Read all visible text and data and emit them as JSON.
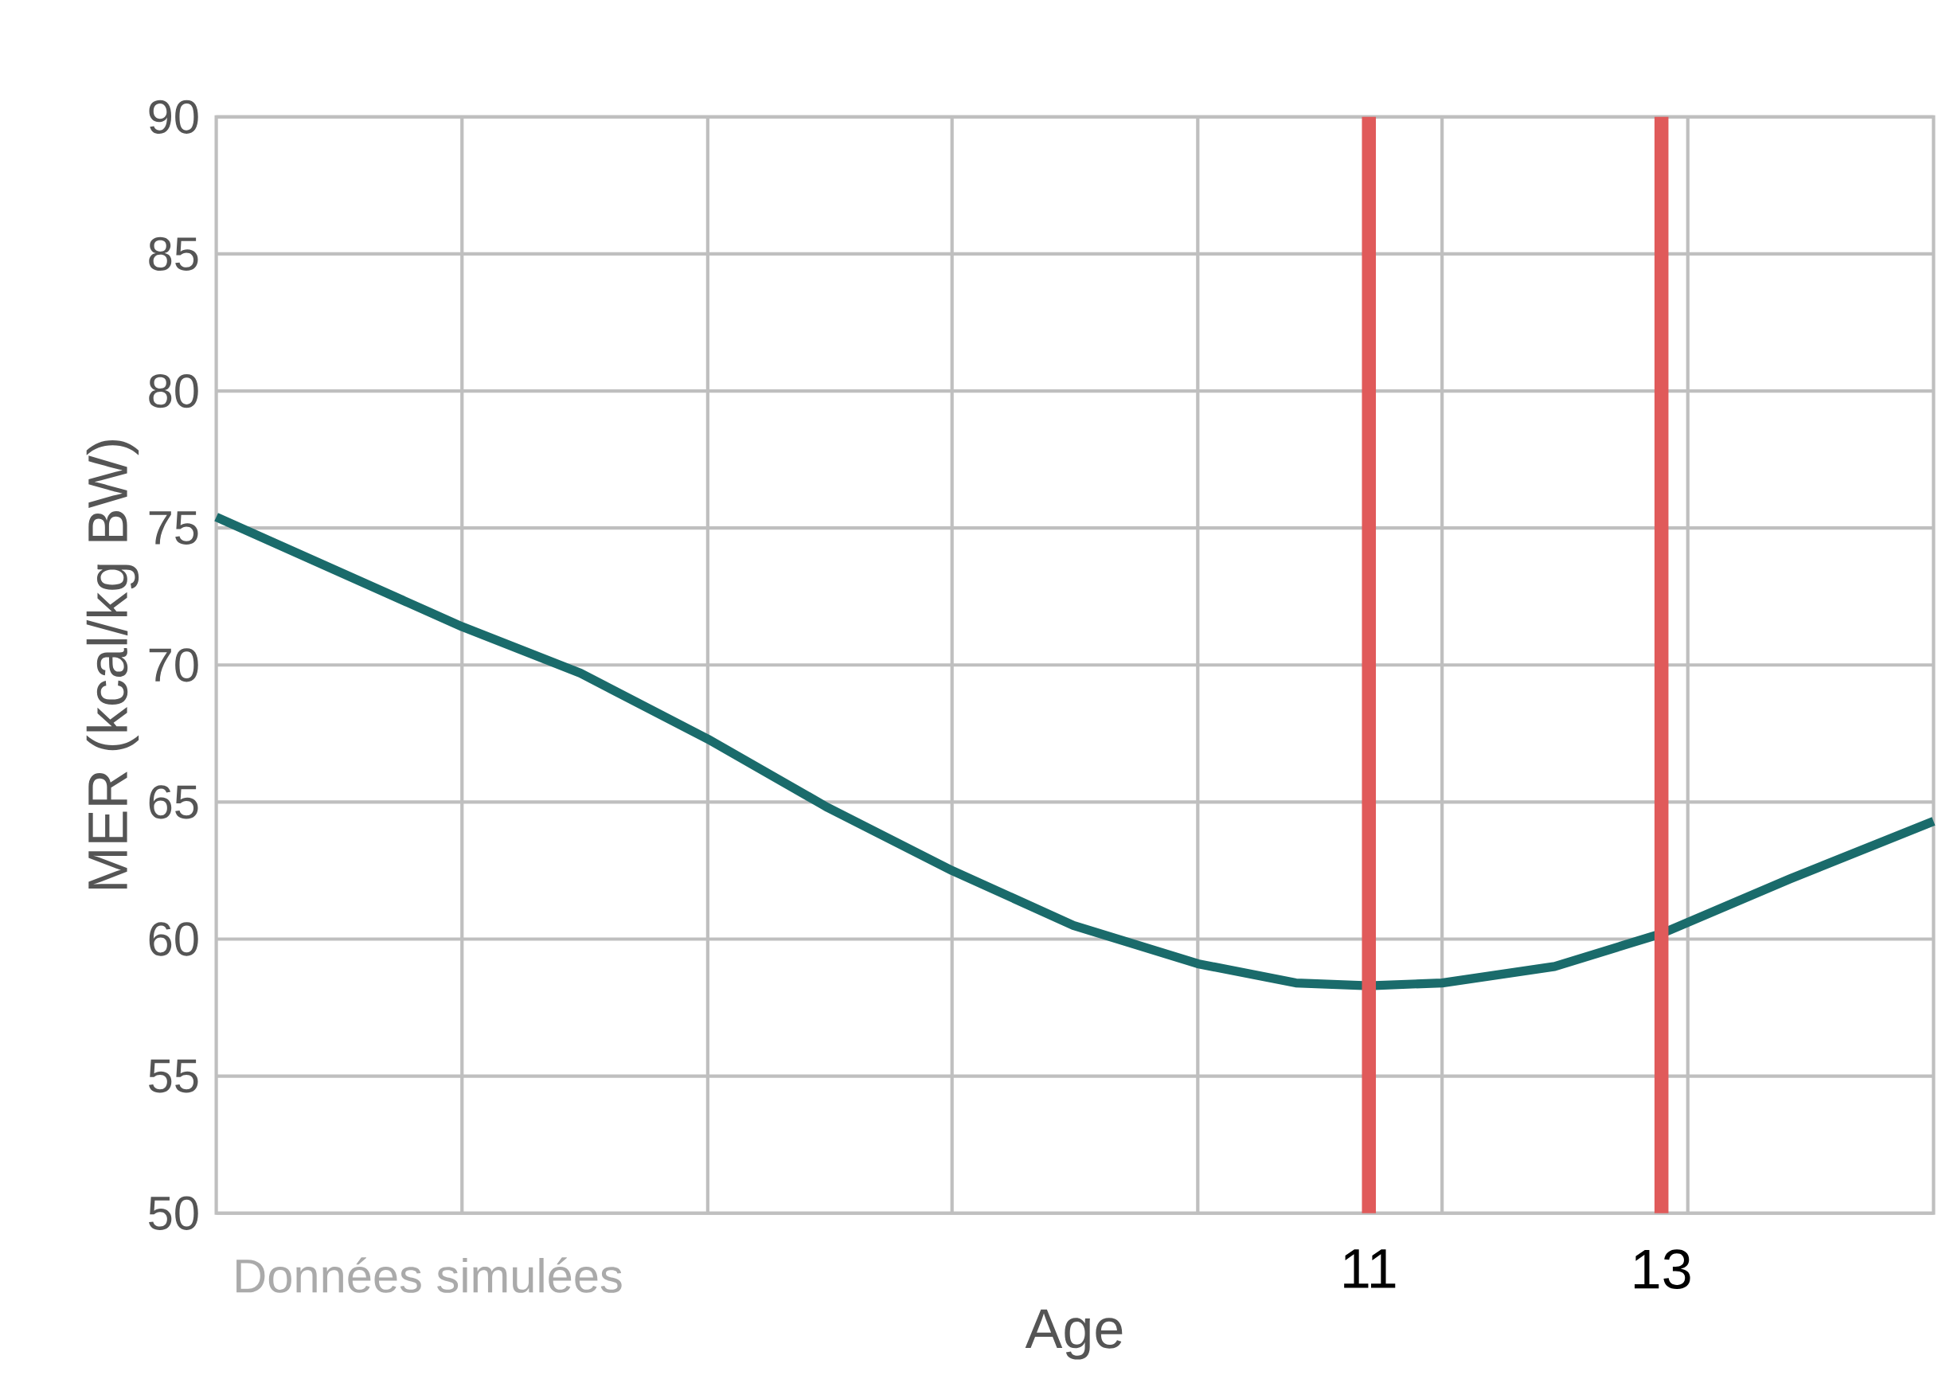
{
  "chart_data": {
    "type": "line",
    "xlabel": "Age",
    "ylabel": "MER (kcal/kg BW)",
    "x": [
      3.12,
      4.8,
      5.61,
      6.48,
      7.3,
      8.15,
      8.98,
      9.83,
      10.5,
      11.0,
      11.5,
      12.27,
      13.0,
      13.88,
      14.86
    ],
    "series": [
      {
        "color": "#1a6b6b",
        "values": [
          75.4,
          71.4,
          69.7,
          67.3,
          64.8,
          62.5,
          60.5,
          59.1,
          58.4,
          58.3,
          58.4,
          59.0,
          60.2,
          62.2,
          64.3
        ]
      }
    ],
    "xlim": [
      3.12,
      14.86
    ],
    "xticks": [
      {
        "value": 4.8,
        "label": null
      },
      {
        "value": 6.48,
        "label": null
      },
      {
        "value": 8.15,
        "label": null
      },
      {
        "value": 9.83,
        "label": null
      },
      {
        "value": 11.5,
        "label": null
      },
      {
        "value": 13.18,
        "label": null
      }
    ],
    "ylim": [
      50,
      90
    ],
    "yticks": [
      50,
      55,
      60,
      65,
      70,
      75,
      80,
      85,
      90
    ],
    "grid": true,
    "tick_labels": "y",
    "line_style": "solid",
    "marker": "none",
    "ref_lines": [
      {
        "axis": "x",
        "value": 11,
        "label": "11",
        "color": "#e05a5a"
      },
      {
        "axis": "x",
        "value": 13,
        "label": "13",
        "color": "#e05a5a"
      }
    ],
    "annotations": [
      "Données simulées"
    ]
  }
}
